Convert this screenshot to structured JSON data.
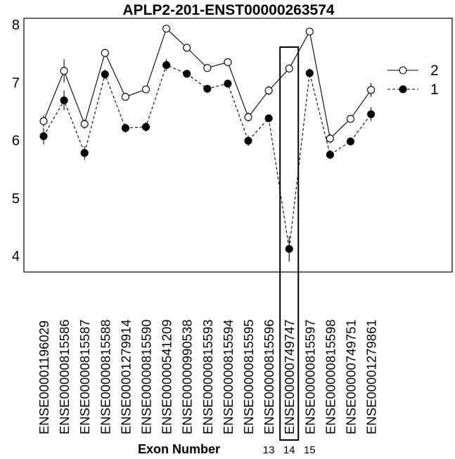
{
  "chart_data": {
    "type": "line",
    "title": "APLP2-201-ENST00000263574",
    "xlabel": "Exon Number",
    "ylim": [
      3.75,
      8.05
    ],
    "yticks": [
      4,
      5,
      6,
      7,
      8
    ],
    "categories": [
      "ENSE00001196029",
      "ENSE00000815586",
      "ENSE00000815587",
      "ENSE00000815588",
      "ENSE00001279914",
      "ENSE00000815590",
      "ENSE00000541209",
      "ENSE00000990538",
      "ENSE00000815593",
      "ENSE00000815594",
      "ENSE00000815595",
      "ENSE00000815596",
      "ENSE00000749747",
      "ENSE00000815597",
      "ENSE00000815598",
      "ENSE00000749751",
      "ENSE00001279861"
    ],
    "series": [
      {
        "name": "2",
        "marker": "open-circle",
        "line": "solid",
        "values": [
          6.33,
          7.2,
          6.28,
          7.51,
          6.75,
          6.88,
          7.93,
          7.6,
          7.25,
          7.35,
          6.4,
          6.86,
          7.24,
          7.88,
          6.03,
          6.37,
          6.87
        ],
        "error": [
          0.1,
          0.2,
          0.08,
          0.07,
          0.06,
          0.06,
          0.05,
          0.06,
          0.05,
          0.05,
          0.08,
          0.08,
          0.07,
          0.06,
          0.08,
          0.06,
          0.12
        ]
      },
      {
        "name": "1",
        "marker": "filled-circle",
        "line": "dashed",
        "values": [
          6.07,
          6.69,
          5.78,
          7.14,
          6.21,
          6.23,
          7.3,
          7.15,
          6.89,
          6.98,
          5.99,
          6.38,
          4.12,
          7.16,
          5.75,
          5.98,
          6.45
        ],
        "error": [
          0.14,
          0.17,
          0.12,
          0.08,
          0.08,
          0.08,
          0.1,
          0.06,
          0.05,
          0.05,
          0.09,
          0.06,
          0.22,
          0.08,
          0.08,
          0.06,
          0.12
        ]
      }
    ],
    "legend": {
      "position": "right",
      "entries": [
        "2",
        "1"
      ]
    },
    "grid": false,
    "highlight_category": "ENSE00000749747",
    "exon_numbers": [
      {
        "category_index": 11,
        "label": "13"
      },
      {
        "category_index": 12,
        "label": "14"
      },
      {
        "category_index": 13,
        "label": "15"
      }
    ],
    "colors": {
      "line": "#000000",
      "background": "#ffffff"
    }
  }
}
